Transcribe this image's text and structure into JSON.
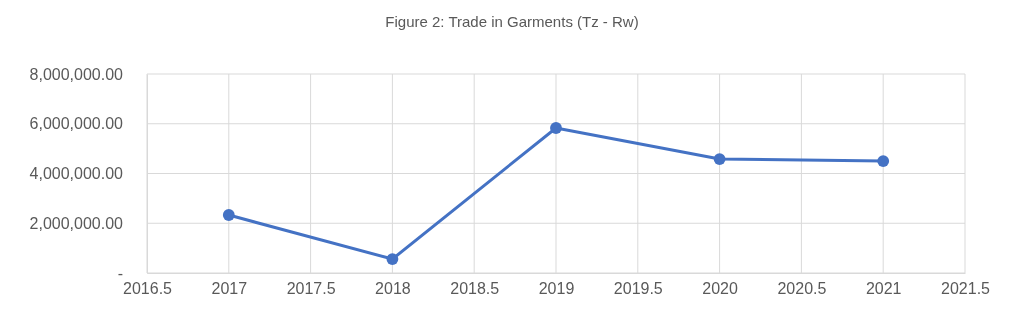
{
  "chart_data": {
    "type": "line",
    "title": "Figure 2: Trade in Garments (Tz - Rw)",
    "x": [
      2017,
      2018,
      2019,
      2020,
      2021
    ],
    "series": [
      {
        "color": "#4472c4",
        "values": [
          2330000,
          560000,
          5830000,
          4580000,
          4500000
        ]
      }
    ],
    "xlim": [
      2016.5,
      2021.5
    ],
    "xticks": [
      2016.5,
      2017,
      2017.5,
      2018,
      2018.5,
      2019,
      2019.5,
      2020,
      2020.5,
      2021,
      2021.5
    ],
    "ylim": [
      0,
      8000000
    ],
    "yticks": [
      {
        "value": 0,
        "label": "-"
      },
      {
        "value": 2000000,
        "label": "2,000,000.00"
      },
      {
        "value": 4000000,
        "label": "4,000,000.00"
      },
      {
        "value": 6000000,
        "label": "6,000,000.00"
      },
      {
        "value": 8000000,
        "label": "8,000,000.00"
      }
    ],
    "grid": true,
    "marker": "circle",
    "line_style": "solid"
  }
}
